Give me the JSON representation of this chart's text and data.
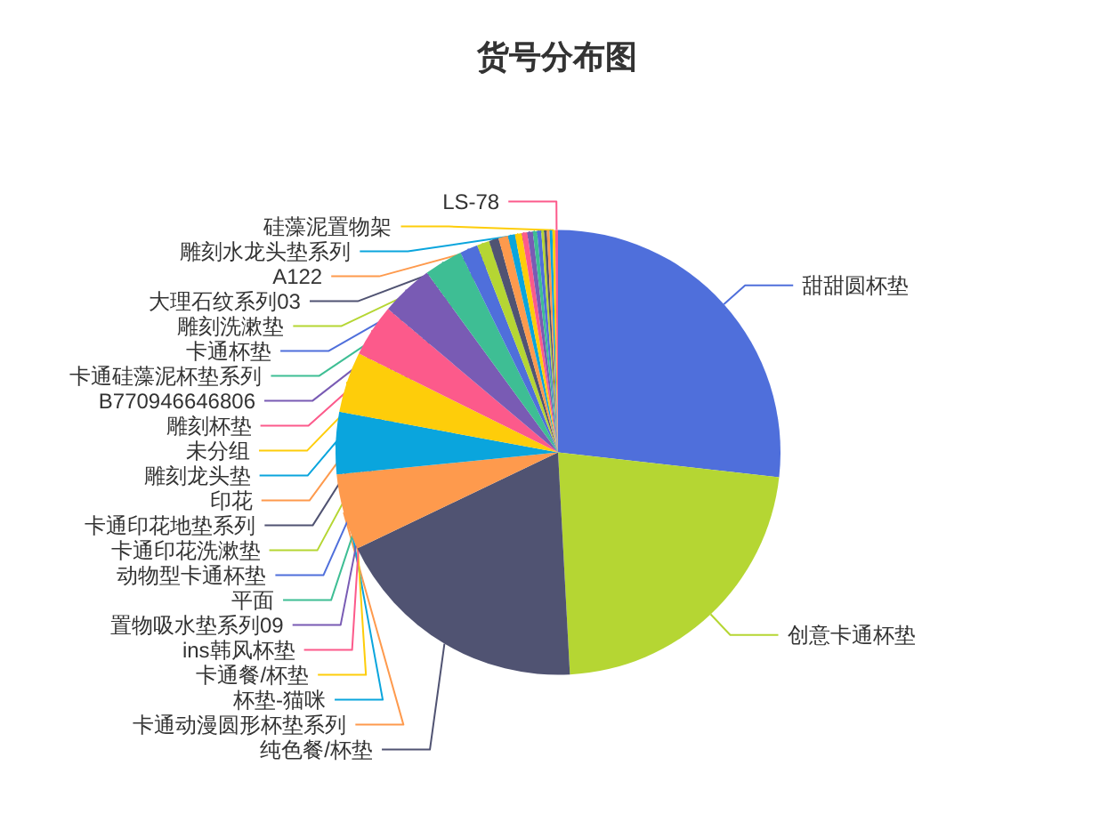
{
  "chart_data": {
    "type": "pie",
    "title": "货号分布图",
    "categories": [
      "甜甜圆杯垫",
      "创意卡通杯垫",
      "纯色餐/杯垫",
      "卡通动漫圆形杯垫系列",
      "杯垫-猫咪",
      "卡通餐/杯垫",
      "ins韩风杯垫",
      "置物吸水垫系列09",
      "平面",
      "动物型卡通杯垫",
      "卡通印花洗漱垫",
      "卡通印花地垫系列",
      "印花",
      "雕刻龙头垫",
      "未分组",
      "雕刻杯垫",
      "B770946646806",
      "卡通硅藻泥杯垫系列",
      "卡通杯垫",
      "雕刻洗漱垫",
      "大理石纹系列03",
      "A122",
      "雕刻水龙头垫系列",
      "硅藻泥置物架",
      "LS-78"
    ],
    "values": [
      26.7,
      22.3,
      18.7,
      5.5,
      4.5,
      4.4,
      3.8,
      3.8,
      2.8,
      1.3,
      0.9,
      0.7,
      0.7,
      0.5,
      0.5,
      0.4,
      0.4,
      0.3,
      0.3,
      0.2,
      0.2,
      0.2,
      0.2,
      0.2,
      0.2
    ],
    "colors": [
      "#4f6fdb",
      "#b5d633",
      "#505372",
      "#fe9a4d",
      "#0aa5dd",
      "#fecd0a",
      "#fc5a8b",
      "#795bb4",
      "#3ebe94",
      "#4f6fdb",
      "#b5d633",
      "#505372",
      "#fe9a4d",
      "#0aa5dd",
      "#fecd0a",
      "#fc5a8b",
      "#795bb4",
      "#3ebe94",
      "#4f6fdb",
      "#b5d633",
      "#505372",
      "#fe9a4d",
      "#0aa5dd",
      "#fecd0a",
      "#fc5a8b"
    ]
  }
}
